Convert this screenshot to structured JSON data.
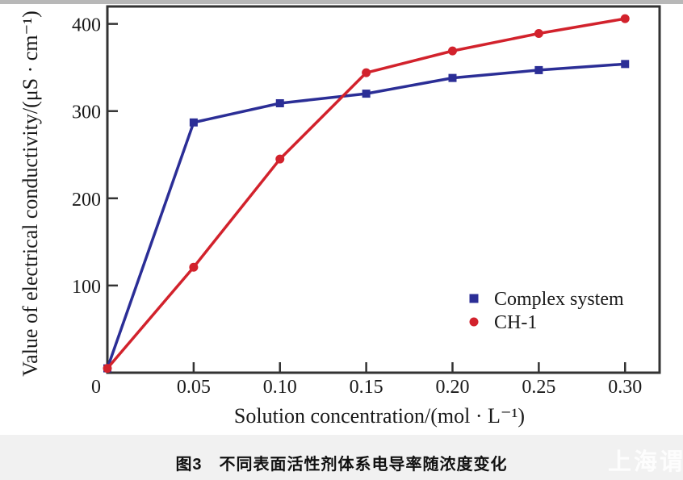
{
  "figure": {
    "caption": "图3　不同表面活性剂体系电导率随浓度变化",
    "watermark": "上海谓"
  },
  "chart_data": {
    "type": "line",
    "title": "",
    "xlabel": "Solution concentration/(mol · L⁻¹)",
    "ylabel": "Value of electrical conductivity/(μS · cm⁻¹)",
    "x": [
      0,
      0.05,
      0.1,
      0.15,
      0.2,
      0.25,
      0.3
    ],
    "series": [
      {
        "name": "Complex system",
        "color": "#2b2e96",
        "marker": "square",
        "values": [
          5,
          287,
          309,
          320,
          338,
          347,
          354
        ]
      },
      {
        "name": "CH-1",
        "color": "#d2222c",
        "marker": "circle",
        "values": [
          5,
          121,
          245,
          344,
          369,
          389,
          406
        ]
      }
    ],
    "xlim": [
      0,
      0.32
    ],
    "ylim": [
      0,
      420
    ],
    "x_tick_labels": [
      "0",
      "0.05",
      "0.10",
      "0.15",
      "0.20",
      "0.25",
      "0.30"
    ],
    "x_tick_values": [
      0,
      0.05,
      0.1,
      0.15,
      0.2,
      0.25,
      0.3
    ],
    "y_tick_labels": [
      "100",
      "200",
      "300",
      "400"
    ],
    "y_tick_values": [
      100,
      200,
      300,
      400
    ],
    "grid": false,
    "legend_position": "inside lower right"
  }
}
